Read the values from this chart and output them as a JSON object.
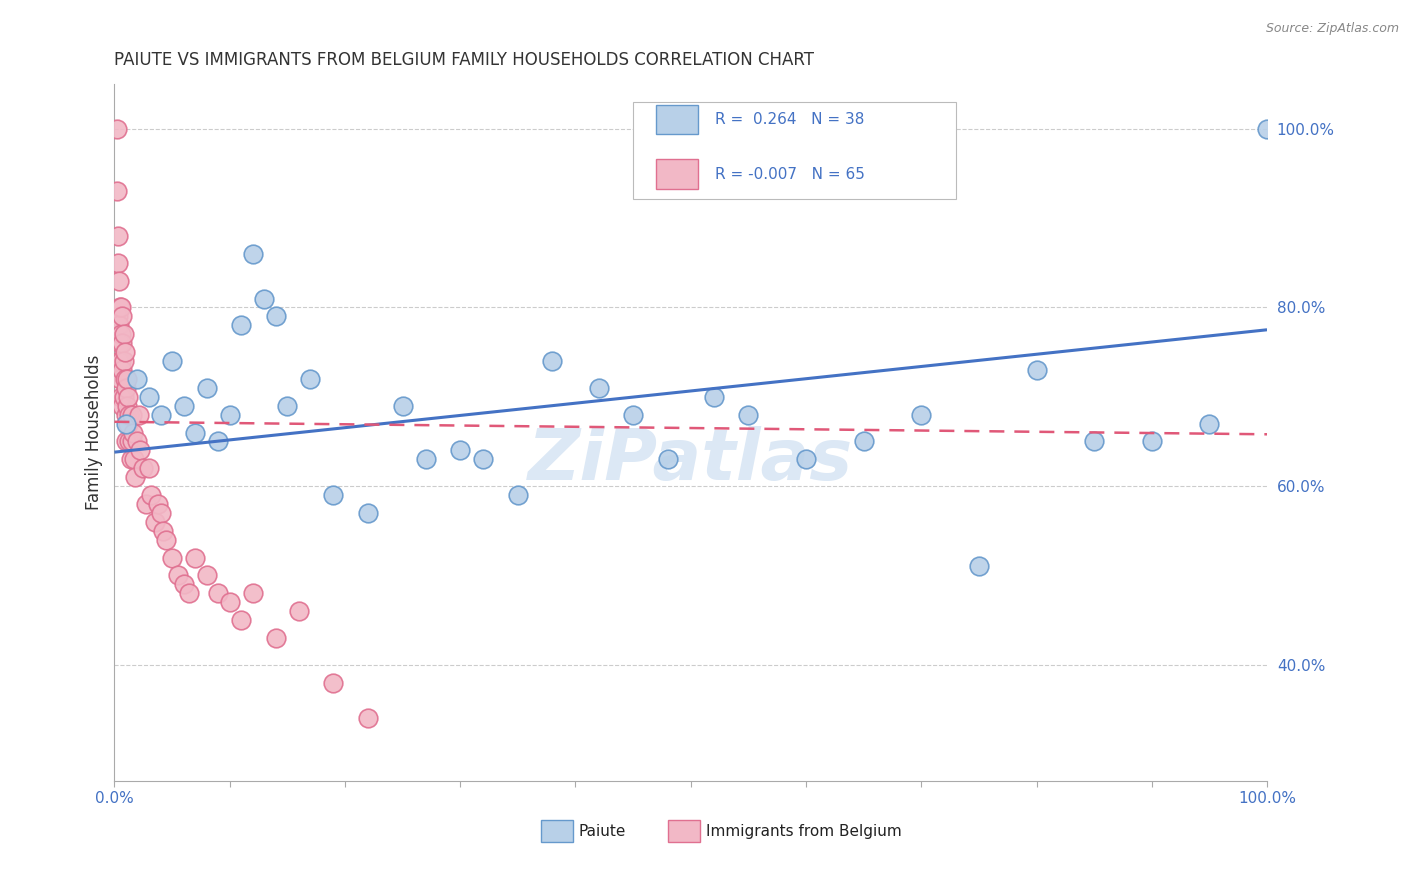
{
  "title": "PAIUTE VS IMMIGRANTS FROM BELGIUM FAMILY HOUSEHOLDS CORRELATION CHART",
  "source": "Source: ZipAtlas.com",
  "ylabel": "Family Households",
  "y_labels": [
    "40.0%",
    "60.0%",
    "80.0%",
    "100.0%"
  ],
  "y_label_vals": [
    0.4,
    0.6,
    0.8,
    1.0
  ],
  "legend_blue_r": "0.264",
  "legend_blue_n": "38",
  "legend_pink_r": "-0.007",
  "legend_pink_n": "65",
  "blue_face": "#b8d0e8",
  "blue_edge": "#6699cc",
  "pink_face": "#f2b8c6",
  "pink_edge": "#e07090",
  "line_blue_color": "#4472c4",
  "line_pink_color": "#e05878",
  "watermark_color": "#dce8f5",
  "grid_color": "#cccccc",
  "bg_color": "#ffffff",
  "blue_scatter_x": [
    0.01,
    0.02,
    0.03,
    0.04,
    0.05,
    0.06,
    0.07,
    0.08,
    0.09,
    0.1,
    0.11,
    0.12,
    0.13,
    0.14,
    0.15,
    0.17,
    0.19,
    0.22,
    0.25,
    0.27,
    0.3,
    0.32,
    0.35,
    0.38,
    0.42,
    0.45,
    0.48,
    0.52,
    0.55,
    0.6,
    0.65,
    0.7,
    0.75,
    0.8,
    0.85,
    0.9,
    0.95,
    1.0
  ],
  "blue_scatter_y": [
    0.67,
    0.72,
    0.7,
    0.68,
    0.74,
    0.69,
    0.66,
    0.71,
    0.65,
    0.68,
    0.78,
    0.86,
    0.81,
    0.79,
    0.69,
    0.72,
    0.59,
    0.57,
    0.69,
    0.63,
    0.64,
    0.63,
    0.59,
    0.74,
    0.71,
    0.68,
    0.63,
    0.7,
    0.68,
    0.63,
    0.65,
    0.68,
    0.51,
    0.73,
    0.65,
    0.65,
    0.67,
    1.0
  ],
  "pink_scatter_x": [
    0.002,
    0.002,
    0.003,
    0.003,
    0.003,
    0.004,
    0.004,
    0.004,
    0.005,
    0.005,
    0.005,
    0.006,
    0.006,
    0.006,
    0.006,
    0.007,
    0.007,
    0.007,
    0.007,
    0.008,
    0.008,
    0.008,
    0.009,
    0.009,
    0.01,
    0.01,
    0.01,
    0.011,
    0.011,
    0.012,
    0.012,
    0.013,
    0.013,
    0.014,
    0.015,
    0.015,
    0.016,
    0.017,
    0.018,
    0.02,
    0.021,
    0.022,
    0.025,
    0.027,
    0.03,
    0.032,
    0.035,
    0.038,
    0.04,
    0.042,
    0.045,
    0.05,
    0.055,
    0.06,
    0.065,
    0.07,
    0.08,
    0.09,
    0.1,
    0.11,
    0.12,
    0.14,
    0.16,
    0.19,
    0.22
  ],
  "pink_scatter_y": [
    1.0,
    0.93,
    0.88,
    0.85,
    0.79,
    0.83,
    0.78,
    0.74,
    0.8,
    0.76,
    0.72,
    0.8,
    0.77,
    0.74,
    0.7,
    0.79,
    0.76,
    0.73,
    0.69,
    0.77,
    0.74,
    0.7,
    0.75,
    0.72,
    0.71,
    0.68,
    0.65,
    0.72,
    0.69,
    0.7,
    0.67,
    0.68,
    0.65,
    0.63,
    0.68,
    0.65,
    0.66,
    0.63,
    0.61,
    0.65,
    0.68,
    0.64,
    0.62,
    0.58,
    0.62,
    0.59,
    0.56,
    0.58,
    0.57,
    0.55,
    0.54,
    0.52,
    0.5,
    0.49,
    0.48,
    0.52,
    0.5,
    0.48,
    0.47,
    0.45,
    0.48,
    0.43,
    0.46,
    0.38,
    0.34
  ],
  "blue_line_x0": 0.0,
  "blue_line_y0": 0.638,
  "blue_line_x1": 1.0,
  "blue_line_y1": 0.775,
  "pink_line_x0": 0.0,
  "pink_line_y0": 0.672,
  "pink_line_x1": 1.0,
  "pink_line_y1": 0.658,
  "xlim": [
    0.0,
    1.0
  ],
  "ylim": [
    0.27,
    1.05
  ],
  "xtick_minor_count": 10
}
